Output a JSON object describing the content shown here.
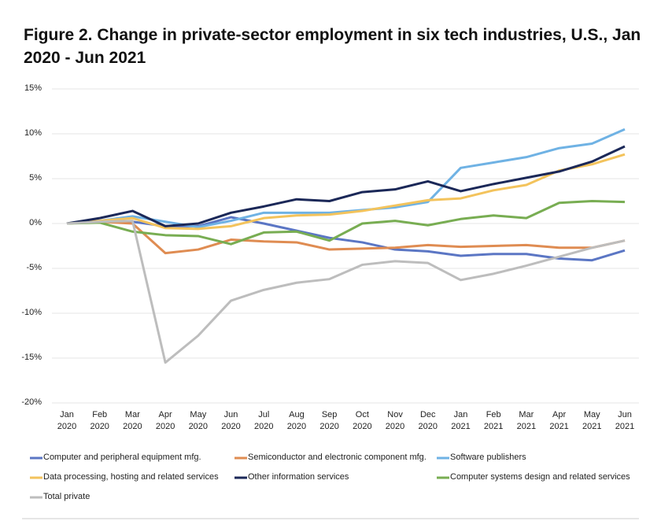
{
  "chart_data": {
    "type": "line",
    "title": "Figure 2. Change in private-sector employment in six tech industries, U.S., Jan 2020 - Jun 2021",
    "categories": [
      "Jan 2020",
      "Feb 2020",
      "Mar 2020",
      "Apr 2020",
      "May 2020",
      "Jun 2020",
      "Jul 2020",
      "Aug 2020",
      "Sep 2020",
      "Oct 2020",
      "Nov 2020",
      "Dec 2020",
      "Jan 2021",
      "Feb 2021",
      "Mar 2021",
      "Apr 2021",
      "May 2021",
      "Jun 2021"
    ],
    "ylim": [
      -20,
      15
    ],
    "yticks": [
      {
        "value": -20,
        "label": "-20%"
      },
      {
        "value": -15,
        "label": "-15%"
      },
      {
        "value": -10,
        "label": "-10%"
      },
      {
        "value": -5,
        "label": "-5%"
      },
      {
        "value": 0,
        "label": "0%"
      },
      {
        "value": 5,
        "label": "5%"
      },
      {
        "value": 10,
        "label": "10%"
      },
      {
        "value": 15,
        "label": "15%"
      }
    ],
    "grid": true,
    "series": [
      {
        "name": "Computer and peripheral equipment mfg.",
        "color": "#5b76c4",
        "values": [
          0,
          0.3,
          0.2,
          -0.3,
          -0.3,
          0.7,
          0,
          -0.8,
          -1.6,
          -2.1,
          -2.9,
          -3.1,
          -3.6,
          -3.4,
          -3.4,
          -3.9,
          -4.1,
          -3.0
        ]
      },
      {
        "name": "Semiconductor and electronic component mfg.",
        "color": "#df8c52",
        "values": [
          0,
          0.2,
          0,
          -3.3,
          -2.9,
          -1.8,
          -2.0,
          -2.1,
          -2.9,
          -2.8,
          -2.7,
          -2.4,
          -2.6,
          -2.5,
          -2.4,
          -2.7,
          -2.7,
          -1.9
        ]
      },
      {
        "name": "Software publishers",
        "color": "#6fb2e4",
        "values": [
          0,
          0.3,
          0.8,
          0.2,
          -0.4,
          0.3,
          1.2,
          1.2,
          1.2,
          1.5,
          1.8,
          2.4,
          6.2,
          6.8,
          7.4,
          8.4,
          8.9,
          10.5
        ]
      },
      {
        "name": "Data processing, hosting and related services",
        "color": "#f3c35c",
        "values": [
          0,
          0.3,
          0.6,
          -0.5,
          -0.6,
          -0.3,
          0.6,
          0.9,
          1.0,
          1.4,
          2.0,
          2.6,
          2.8,
          3.7,
          4.3,
          5.9,
          6.6,
          7.7
        ]
      },
      {
        "name": "Other information services",
        "color": "#1b2858",
        "values": [
          0,
          0.6,
          1.4,
          -0.3,
          0,
          1.2,
          1.9,
          2.7,
          2.5,
          3.5,
          3.8,
          4.7,
          3.6,
          4.4,
          5.1,
          5.8,
          6.9,
          8.6
        ]
      },
      {
        "name": "Computer systems design and related services",
        "color": "#78ad52",
        "values": [
          0,
          0.1,
          -0.9,
          -1.3,
          -1.4,
          -2.3,
          -1.0,
          -0.9,
          -1.9,
          0,
          0.3,
          -0.2,
          0.5,
          0.9,
          0.6,
          2.3,
          2.5,
          2.4
        ]
      },
      {
        "name": "Total private",
        "color": "#bdbdbd",
        "values": [
          0,
          0.2,
          0.3,
          -15.5,
          -12.5,
          -8.6,
          -7.4,
          -6.6,
          -6.2,
          -4.6,
          -4.2,
          -4.4,
          -6.3,
          -5.6,
          -4.7,
          -3.7,
          -2.7,
          -1.9
        ]
      }
    ]
  }
}
